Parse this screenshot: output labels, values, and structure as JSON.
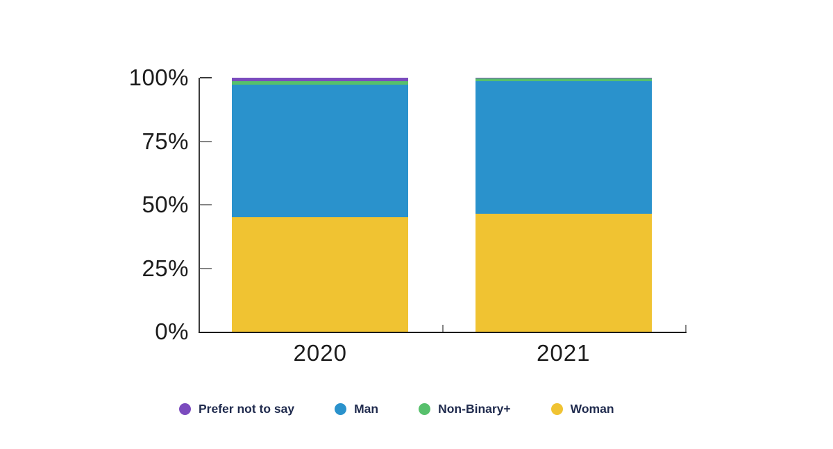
{
  "chart_data": {
    "type": "bar",
    "variant": "stacked-percentage",
    "title": "",
    "xlabel": "",
    "ylabel": "",
    "categories": [
      "2020",
      "2021"
    ],
    "series": [
      {
        "name": "Prefer not to say",
        "color": "#7B4BBE",
        "values": [
          1.3,
          0.4
        ]
      },
      {
        "name": "Man",
        "color": "#2A92CC",
        "values": [
          52.2,
          52.3
        ]
      },
      {
        "name": "Non-Binary+",
        "color": "#57C06C",
        "values": [
          1.4,
          0.9
        ]
      },
      {
        "name": "Woman",
        "color": "#F0C332",
        "values": [
          45.1,
          46.4
        ]
      }
    ],
    "stack_order_bottom_to_top": [
      "Woman",
      "Man",
      "Non-Binary+",
      "Prefer not to say"
    ],
    "y_axis": {
      "range": [
        0,
        100
      ],
      "ticks": [
        0,
        25,
        50,
        75,
        100
      ],
      "tick_labels": [
        "0%",
        "25%",
        "50%",
        "75%",
        "100%"
      ]
    },
    "grid": "off",
    "legend": {
      "position": "bottom",
      "items": [
        "Prefer not to say",
        "Man",
        "Non-Binary+",
        "Woman"
      ]
    },
    "colors": {
      "axis_line": "#3a3a3a",
      "baseline": "#1a1a1a",
      "tick": "#858585",
      "tick_label": "#1c1c1c",
      "legend_text": "#1f2a4d"
    }
  }
}
